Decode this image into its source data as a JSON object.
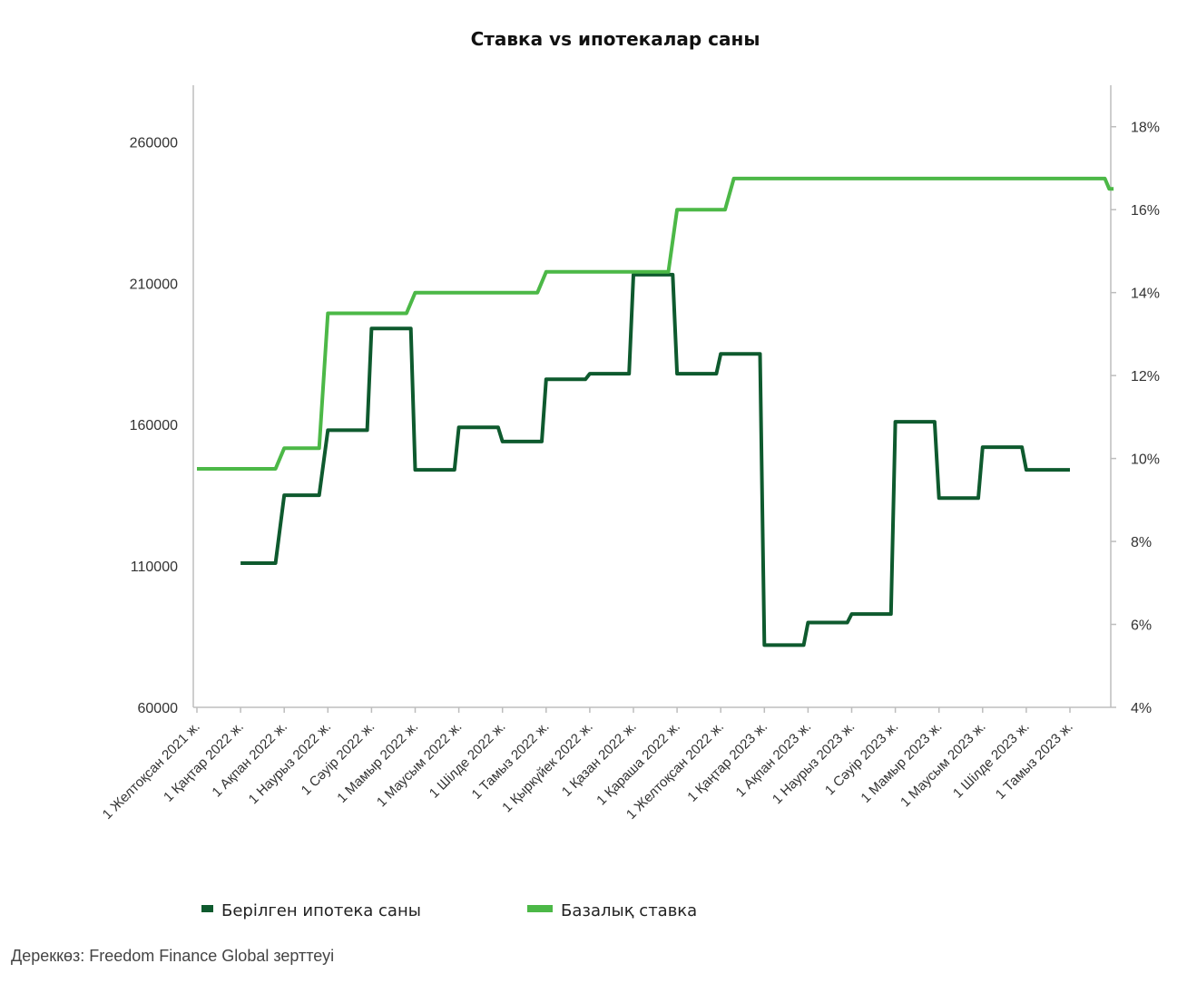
{
  "chart_data": {
    "type": "line",
    "step": true,
    "title": "Ставка vs ипотекалар саны",
    "categories": [
      "1 Желтоқсан 2021 ж.",
      "1 Қаңтар 2022 ж.",
      "1 Ақпан 2022 ж.",
      "1 Наурыз 2022 ж.",
      "1 Сәуір 2022 ж.",
      "1 Мамыр 2022 ж.",
      "1 Маусым 2022 ж.",
      "1 Шілде 2022 ж.",
      "1 Тамыз 2022 ж.",
      "1 Қыркүйек 2022 ж.",
      "1 Қазан 2022 ж.",
      "1 Қараша 2022 ж.",
      "1 Желтоқсан 2022 ж.",
      "1 Қаңтар 2023 ж.",
      "1 Ақпан 2023 ж.",
      "1 Наурыз 2023 ж.",
      "1 Сәуір 2023 ж.",
      "1 Мамыр 2023 ж.",
      "1 Маусым 2023 ж.",
      "1 Шілде 2023 ж.",
      "1 Тамыз 2023 ж."
    ],
    "y_left": {
      "ticks": [
        "260000",
        "210000",
        "160000",
        "110000",
        "60000"
      ],
      "ylim": [
        60000,
        280000
      ]
    },
    "y_right": {
      "ticks": [
        "18%",
        "16%",
        "14%",
        "12%",
        "10%",
        "8%",
        "6%",
        "4%"
      ],
      "ylim": [
        4,
        19
      ]
    },
    "series": [
      {
        "name": "Берілген ипотека саны",
        "axis": "left",
        "color": "#0e5a2e",
        "points": [
          [
            1,
            111000
          ],
          [
            1.8,
            111000
          ],
          [
            2,
            135000
          ],
          [
            2.8,
            135000
          ],
          [
            3,
            158000
          ],
          [
            3.9,
            158000
          ],
          [
            4,
            194000
          ],
          [
            4.9,
            194000
          ],
          [
            5,
            144000
          ],
          [
            5.9,
            144000
          ],
          [
            6,
            159000
          ],
          [
            6.9,
            159000
          ],
          [
            7,
            154000
          ],
          [
            7.9,
            154000
          ],
          [
            8,
            176000
          ],
          [
            8.9,
            176000
          ],
          [
            9,
            178000
          ],
          [
            9.9,
            178000
          ],
          [
            10,
            213000
          ],
          [
            10.9,
            213000
          ],
          [
            11,
            178000
          ],
          [
            11.9,
            178000
          ],
          [
            12,
            185000
          ],
          [
            12.9,
            185000
          ],
          [
            13,
            82000
          ],
          [
            13.9,
            82000
          ],
          [
            14,
            90000
          ],
          [
            14.9,
            90000
          ],
          [
            15,
            93000
          ],
          [
            15.9,
            93000
          ],
          [
            16,
            161000
          ],
          [
            16.9,
            161000
          ],
          [
            17,
            134000
          ],
          [
            17.9,
            134000
          ],
          [
            18,
            152000
          ],
          [
            18.9,
            152000
          ],
          [
            19,
            144000
          ],
          [
            20,
            144000
          ]
        ]
      },
      {
        "name": "Базалық ставка",
        "axis": "right",
        "color": "#4cb847",
        "points": [
          [
            0,
            9.75
          ],
          [
            1.8,
            9.75
          ],
          [
            2,
            10.25
          ],
          [
            2.8,
            10.25
          ],
          [
            3,
            13.5
          ],
          [
            4.8,
            13.5
          ],
          [
            5,
            14.0
          ],
          [
            7.8,
            14.0
          ],
          [
            8,
            14.5
          ],
          [
            10.8,
            14.5
          ],
          [
            11,
            16.0
          ],
          [
            12.1,
            16.0
          ],
          [
            12.3,
            16.75
          ],
          [
            20.8,
            16.75
          ],
          [
            20.9,
            16.5
          ],
          [
            21.0,
            16.5
          ]
        ]
      }
    ],
    "legend": {
      "position": "bottom",
      "items": [
        {
          "label": "Берілген ипотека саны",
          "color": "#0e5a2e"
        },
        {
          "label": "Базалық ставка",
          "color": "#4cb847"
        }
      ]
    },
    "grid": false
  },
  "source": "Дереккөз: Freedom Finance Global зерттеуі"
}
